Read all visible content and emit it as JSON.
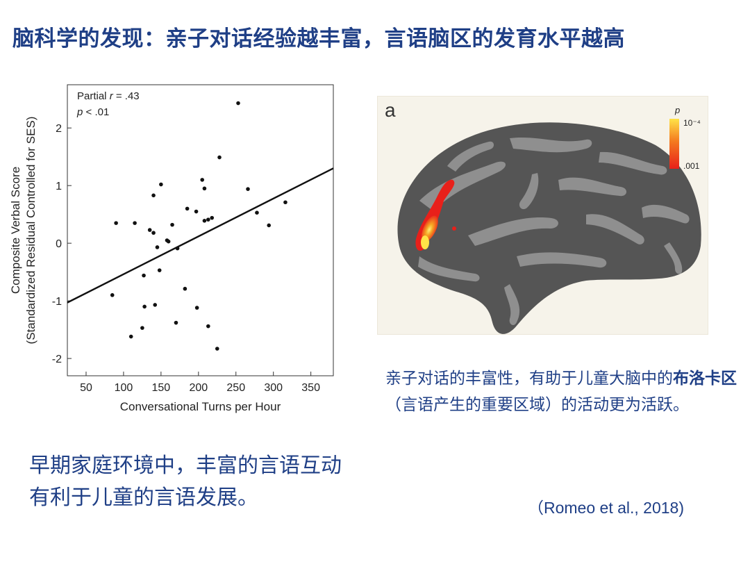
{
  "title": "脑科学的发现：亲子对话经验越丰富，言语脑区的发育水平越高",
  "chart_data": {
    "type": "scatter",
    "annotation_line1_prefix": "Partial ",
    "annotation_line1_var": "r",
    "annotation_line1_suffix": " = .43",
    "annotation_line2_var": "p",
    "annotation_line2_suffix": " < .01",
    "xlabel": "Conversational Turns per Hour",
    "ylabel_line1": "Composite Verbal Score",
    "ylabel_line2": "(Standardized Residual Controlled for SES)",
    "xlim": [
      25,
      380
    ],
    "ylim": [
      -2.3,
      2.75
    ],
    "xticks": [
      50,
      100,
      150,
      200,
      250,
      300,
      350
    ],
    "yticks": [
      -2,
      -1,
      0,
      1,
      2
    ],
    "grid": false,
    "points": [
      [
        85,
        -0.9
      ],
      [
        90,
        0.35
      ],
      [
        110,
        -1.62
      ],
      [
        115,
        0.35
      ],
      [
        125,
        -1.47
      ],
      [
        127,
        -0.56
      ],
      [
        128,
        -1.1
      ],
      [
        135,
        0.23
      ],
      [
        140,
        0.83
      ],
      [
        140,
        0.18
      ],
      [
        142,
        -1.07
      ],
      [
        145,
        -0.07
      ],
      [
        148,
        -0.47
      ],
      [
        150,
        1.02
      ],
      [
        158,
        0.05
      ],
      [
        160,
        0.03
      ],
      [
        165,
        0.32
      ],
      [
        170,
        -1.38
      ],
      [
        172,
        -0.09
      ],
      [
        182,
        -0.79
      ],
      [
        185,
        0.6
      ],
      [
        197,
        0.55
      ],
      [
        198,
        -1.12
      ],
      [
        205,
        1.1
      ],
      [
        208,
        0.39
      ],
      [
        208,
        0.95
      ],
      [
        213,
        0.41
      ],
      [
        213,
        -1.44
      ],
      [
        218,
        0.44
      ],
      [
        225,
        -1.83
      ],
      [
        228,
        1.49
      ],
      [
        253,
        2.43
      ],
      [
        266,
        0.94
      ],
      [
        278,
        0.53
      ],
      [
        294,
        0.31
      ],
      [
        316,
        0.71
      ]
    ],
    "fit_line": {
      "x": [
        25,
        380
      ],
      "y": [
        -1.03,
        1.3
      ]
    }
  },
  "brain_panel": {
    "letter": "a",
    "legend_var": "p",
    "legend_top": "10⁻⁴",
    "legend_bottom": ".001",
    "colors": {
      "cortex_dark": "#4a4a4a",
      "cortex_light": "#8c8c8c",
      "activation_low": "#e8201a",
      "activation_high": "#ffe347"
    }
  },
  "description": {
    "pre": "亲子对话的丰富性，有助于儿童大脑中的",
    "bold": "布洛卡区",
    "post": "（言语产生的重要区域）的活动更为活跃。"
  },
  "bottom_text": "早期家庭环境中，丰富的言语互动有利于儿童的言语发展。",
  "citation": "（Romeo et al., 2018)",
  "colors": {
    "heading": "#1f3f86"
  }
}
